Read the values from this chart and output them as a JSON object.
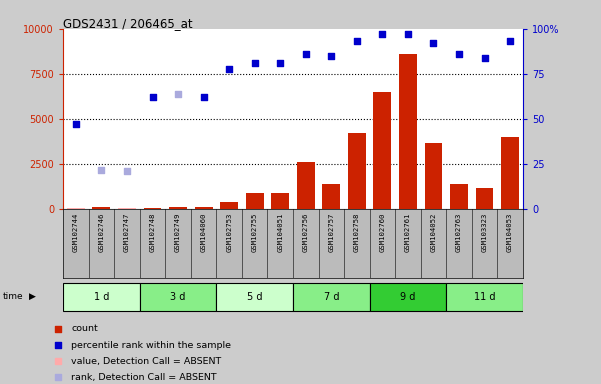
{
  "title": "GDS2431 / 206465_at",
  "samples": [
    "GSM102744",
    "GSM102746",
    "GSM102747",
    "GSM102748",
    "GSM102749",
    "GSM104060",
    "GSM102753",
    "GSM102755",
    "GSM104051",
    "GSM102756",
    "GSM102757",
    "GSM102758",
    "GSM102760",
    "GSM102761",
    "GSM104052",
    "GSM102763",
    "GSM103323",
    "GSM104053"
  ],
  "time_groups": [
    {
      "label": "1 d",
      "start": 0,
      "end": 3,
      "color": "#ccffcc"
    },
    {
      "label": "3 d",
      "start": 3,
      "end": 6,
      "color": "#88ee88"
    },
    {
      "label": "5 d",
      "start": 6,
      "end": 9,
      "color": "#ccffcc"
    },
    {
      "label": "7 d",
      "start": 9,
      "end": 12,
      "color": "#88ee88"
    },
    {
      "label": "9 d",
      "start": 12,
      "end": 15,
      "color": "#33cc33"
    },
    {
      "label": "11 d",
      "start": 15,
      "end": 18,
      "color": "#88ee88"
    }
  ],
  "count_values": [
    50,
    100,
    50,
    50,
    100,
    150,
    400,
    900,
    900,
    2600,
    1400,
    4200,
    6500,
    8600,
    3700,
    1400,
    1200,
    4000
  ],
  "count_absent": [
    true,
    false,
    true,
    false,
    false,
    false,
    false,
    false,
    false,
    false,
    false,
    false,
    false,
    false,
    false,
    false,
    false,
    false
  ],
  "percentile_values": [
    47,
    22,
    21,
    62,
    64,
    62,
    78,
    81,
    81,
    86,
    85,
    93,
    97,
    97,
    92,
    86,
    84,
    93
  ],
  "percentile_absent": [
    false,
    true,
    true,
    false,
    true,
    false,
    false,
    false,
    false,
    false,
    false,
    false,
    false,
    false,
    false,
    false,
    false,
    false
  ],
  "ylim_left": [
    0,
    10000
  ],
  "ylim_right": [
    0,
    100
  ],
  "yticks_left": [
    0,
    2500,
    5000,
    7500,
    10000
  ],
  "yticks_right": [
    0,
    25,
    50,
    75,
    100
  ],
  "bar_color": "#cc2200",
  "bar_absent_color": "#ffaaaa",
  "dot_color": "#0000cc",
  "dot_absent_color": "#aaaadd",
  "background_color": "#cccccc",
  "plot_bg_color": "#ffffff",
  "xlabel_bg_color": "#cccccc",
  "legend_items": [
    {
      "label": "count",
      "color": "#cc2200",
      "marker": "s"
    },
    {
      "label": "percentile rank within the sample",
      "color": "#0000cc",
      "marker": "s"
    },
    {
      "label": "value, Detection Call = ABSENT",
      "color": "#ffaaaa",
      "marker": "s"
    },
    {
      "label": "rank, Detection Call = ABSENT",
      "color": "#aaaadd",
      "marker": "s"
    }
  ]
}
